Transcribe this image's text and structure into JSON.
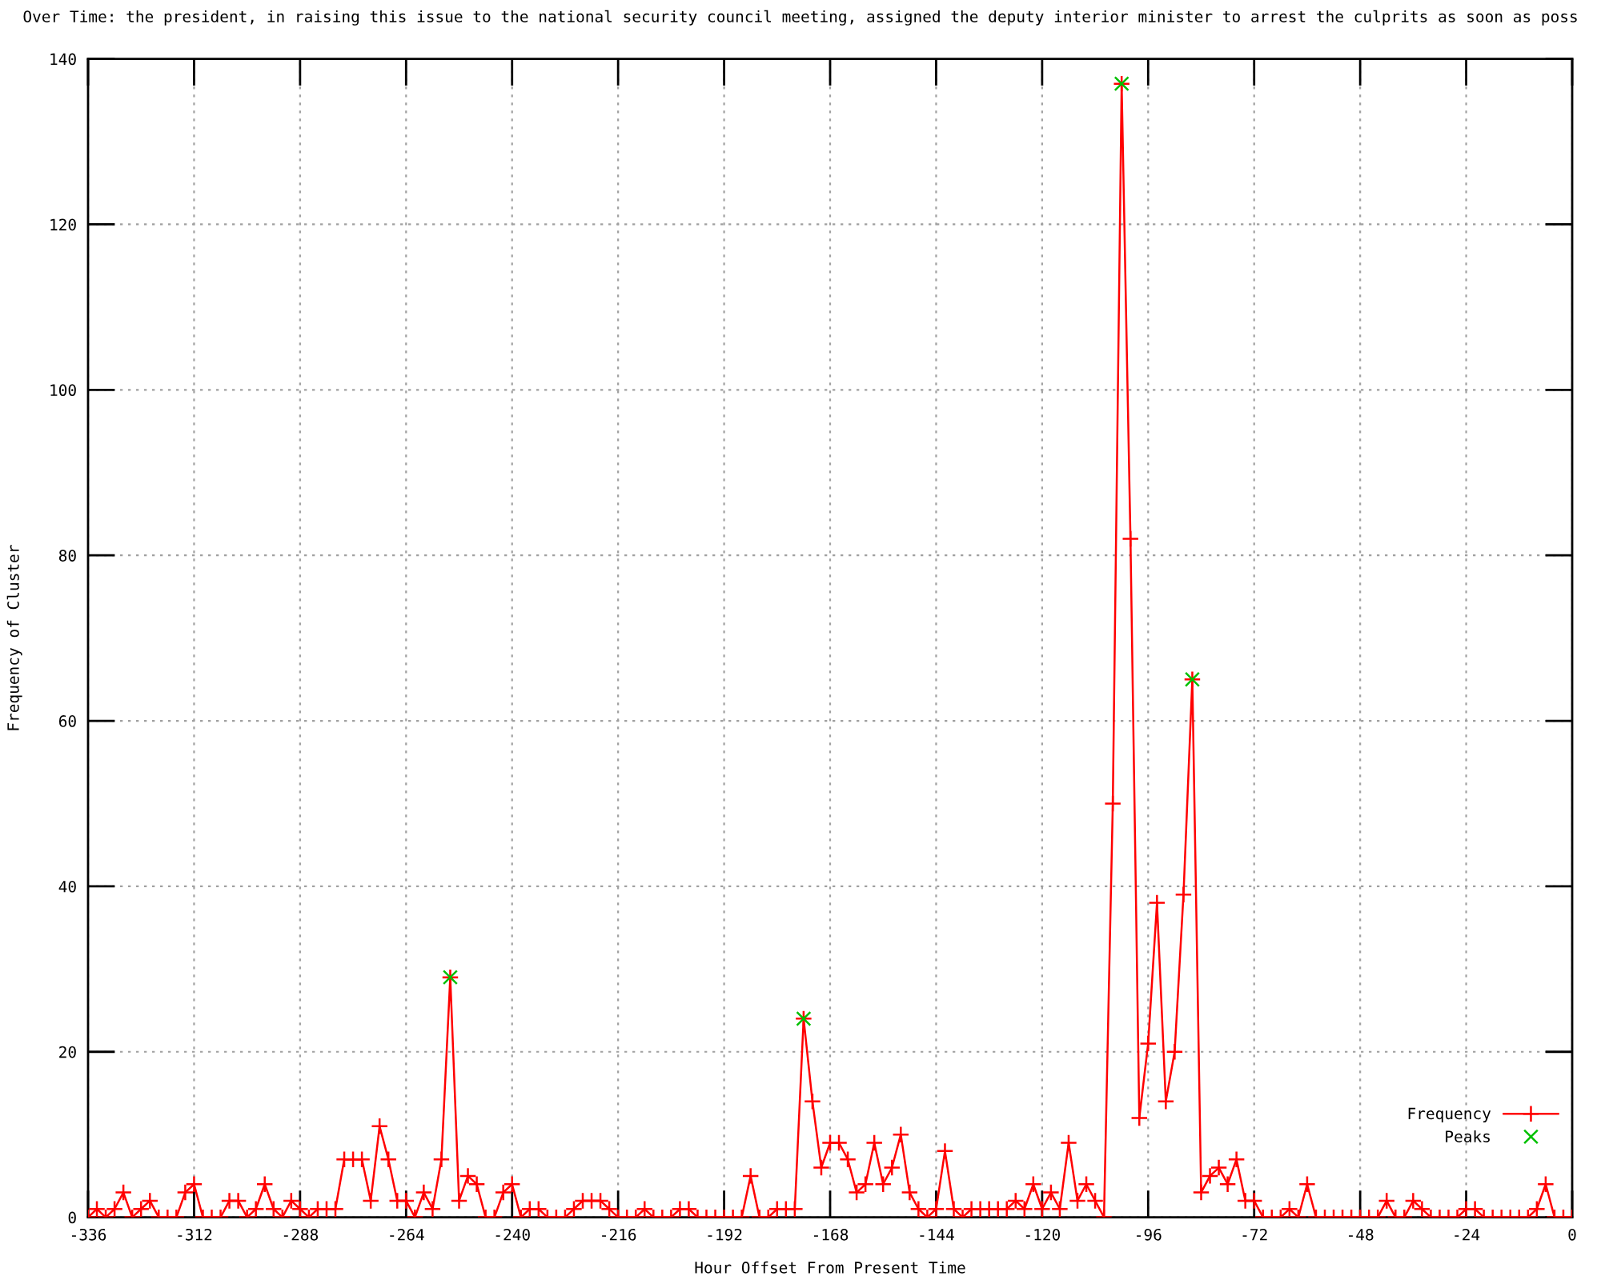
{
  "chart_data": {
    "type": "line",
    "title": "Over Time: the president, in raising this issue to the national security council meeting, assigned the deputy interior minister to arrest the culprits as soon as poss",
    "xlabel": "Hour Offset From Present Time",
    "ylabel": "Frequency of Cluster",
    "x": [
      -336,
      -334,
      -332,
      -330,
      -328,
      -326,
      -324,
      -322,
      -320,
      -318,
      -316,
      -314,
      -312,
      -310,
      -308,
      -306,
      -304,
      -302,
      -300,
      -298,
      -296,
      -294,
      -292,
      -290,
      -288,
      -286,
      -284,
      -282,
      -280,
      -278,
      -276,
      -274,
      -272,
      -270,
      -268,
      -266,
      -264,
      -262,
      -260,
      -258,
      -256,
      -254,
      -252,
      -250,
      -248,
      -246,
      -244,
      -242,
      -240,
      -238,
      -236,
      -234,
      -232,
      -230,
      -228,
      -226,
      -224,
      -222,
      -220,
      -218,
      -216,
      -214,
      -212,
      -210,
      -208,
      -206,
      -204,
      -202,
      -200,
      -198,
      -196,
      -194,
      -192,
      -190,
      -188,
      -186,
      -184,
      -182,
      -180,
      -178,
      -176,
      -174,
      -172,
      -170,
      -168,
      -166,
      -164,
      -162,
      -160,
      -158,
      -156,
      -154,
      -152,
      -150,
      -148,
      -146,
      -144,
      -142,
      -140,
      -138,
      -136,
      -134,
      -132,
      -130,
      -128,
      -126,
      -124,
      -122,
      -120,
      -118,
      -116,
      -114,
      -112,
      -110,
      -108,
      -106,
      -104,
      -102,
      -100,
      -98,
      -96,
      -94,
      -92,
      -90,
      -88,
      -86,
      -84,
      -82,
      -80,
      -78,
      -76,
      -74,
      -72,
      -70,
      -68,
      -66,
      -64,
      -62,
      -60,
      -58,
      -56,
      -54,
      -52,
      -50,
      -48,
      -46,
      -44,
      -42,
      -40,
      -38,
      -36,
      -34,
      -32,
      -30,
      -28,
      -26,
      -24,
      -22,
      -20,
      -18,
      -16,
      -14,
      -12,
      -10,
      -8,
      -6,
      -4,
      -2,
      0
    ],
    "series": [
      {
        "name": "Frequency",
        "color": "#ff0000",
        "marker": "cross",
        "values": [
          0,
          1,
          0,
          1,
          3,
          0,
          1,
          2,
          0,
          0,
          0,
          3,
          4,
          0,
          0,
          0,
          2,
          2,
          0,
          1,
          4,
          1,
          0,
          2,
          1,
          0,
          1,
          1,
          1,
          7,
          7,
          7,
          2,
          11,
          7,
          2,
          2,
          0,
          3,
          1,
          7,
          29,
          2,
          5,
          4,
          0,
          0,
          3,
          4,
          0,
          1,
          1,
          0,
          0,
          0,
          1,
          2,
          2,
          2,
          1,
          0,
          0,
          0,
          1,
          0,
          0,
          0,
          1,
          1,
          0,
          0,
          0,
          0,
          0,
          0,
          5,
          0,
          0,
          1,
          1,
          1,
          24,
          14,
          6,
          9,
          9,
          7,
          3,
          4,
          9,
          4,
          6,
          10,
          3,
          1,
          0,
          1,
          8,
          1,
          0,
          1,
          1,
          1,
          1,
          1,
          2,
          1,
          4,
          1,
          3,
          1,
          9,
          2,
          4,
          2,
          0,
          50,
          137,
          82,
          12,
          21,
          38,
          14,
          20,
          39,
          65,
          3,
          5,
          6,
          4,
          7,
          2,
          2,
          0,
          0,
          0,
          1,
          0,
          4,
          0,
          0,
          0,
          0,
          0,
          0,
          0,
          0,
          2,
          0,
          0,
          2,
          1,
          0,
          0,
          0,
          0,
          1,
          1,
          0,
          0,
          0,
          0,
          0,
          0,
          1,
          4,
          0,
          0,
          0
        ]
      },
      {
        "name": "Peaks",
        "type": "scatter",
        "color": "#00c000",
        "marker": "x",
        "x": [
          -254,
          -174,
          -102,
          -86
        ],
        "values": [
          29,
          24,
          137,
          65
        ]
      }
    ],
    "xlim": [
      -336,
      0
    ],
    "ylim": [
      0,
      140
    ],
    "xticks": [
      -336,
      -312,
      -288,
      -264,
      -240,
      -216,
      -192,
      -168,
      -144,
      -120,
      -96,
      -72,
      -48,
      -24,
      0
    ],
    "yticks": [
      0,
      20,
      40,
      60,
      80,
      100,
      120,
      140
    ],
    "grid": true,
    "legend": "bottom right",
    "line_style": "solid"
  }
}
